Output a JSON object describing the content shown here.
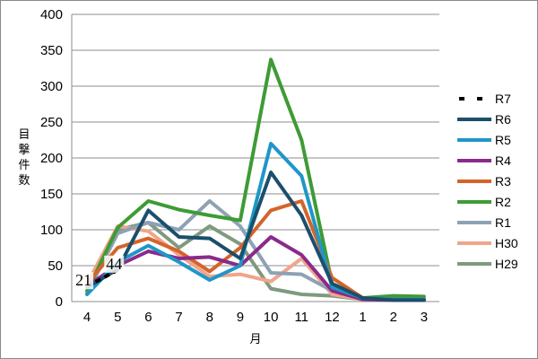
{
  "chart_data": {
    "type": "line",
    "xlabel": "月",
    "ylabel": "目撃件数",
    "ylim": [
      0,
      400
    ],
    "yticks": [
      0,
      50,
      100,
      150,
      200,
      250,
      300,
      350,
      400
    ],
    "grid": true,
    "legend": "right",
    "categories": [
      "4",
      "5",
      "6",
      "7",
      "8",
      "9",
      "10",
      "11",
      "12",
      "1",
      "2",
      "3"
    ],
    "series": [
      {
        "name": "R7",
        "color": "#000000",
        "dashed": true,
        "values": [
          21,
          44,
          null,
          null,
          null,
          null,
          null,
          null,
          null,
          null,
          null,
          null
        ],
        "labels": [
          "21",
          "44"
        ]
      },
      {
        "name": "R6",
        "color": "#1b4f6b",
        "values": [
          20,
          45,
          127,
          90,
          88,
          60,
          180,
          120,
          25,
          5,
          2,
          2
        ]
      },
      {
        "name": "R5",
        "color": "#1f96c8",
        "values": [
          10,
          55,
          78,
          55,
          30,
          50,
          220,
          175,
          20,
          5,
          3,
          3
        ]
      },
      {
        "name": "R4",
        "color": "#8a2a8a",
        "values": [
          22,
          50,
          70,
          60,
          62,
          50,
          90,
          65,
          15,
          3,
          2,
          2
        ]
      },
      {
        "name": "R3",
        "color": "#d4642b",
        "values": [
          25,
          75,
          88,
          70,
          42,
          75,
          127,
          140,
          33,
          5,
          3,
          3
        ]
      },
      {
        "name": "R2",
        "color": "#3e9b35",
        "values": [
          15,
          103,
          140,
          128,
          120,
          113,
          337,
          225,
          25,
          5,
          8,
          7
        ]
      },
      {
        "name": "R1",
        "color": "#8ea1b5",
        "values": [
          12,
          95,
          110,
          100,
          140,
          105,
          40,
          38,
          15,
          5,
          3,
          3
        ]
      },
      {
        "name": "H30",
        "color": "#f0a58a",
        "values": [
          25,
          105,
          98,
          65,
          35,
          38,
          28,
          60,
          10,
          3,
          2,
          2
        ]
      },
      {
        "name": "H29",
        "color": "#7f9a7e",
        "values": [
          20,
          100,
          110,
          75,
          105,
          80,
          18,
          10,
          8,
          3,
          2,
          2
        ]
      }
    ]
  }
}
